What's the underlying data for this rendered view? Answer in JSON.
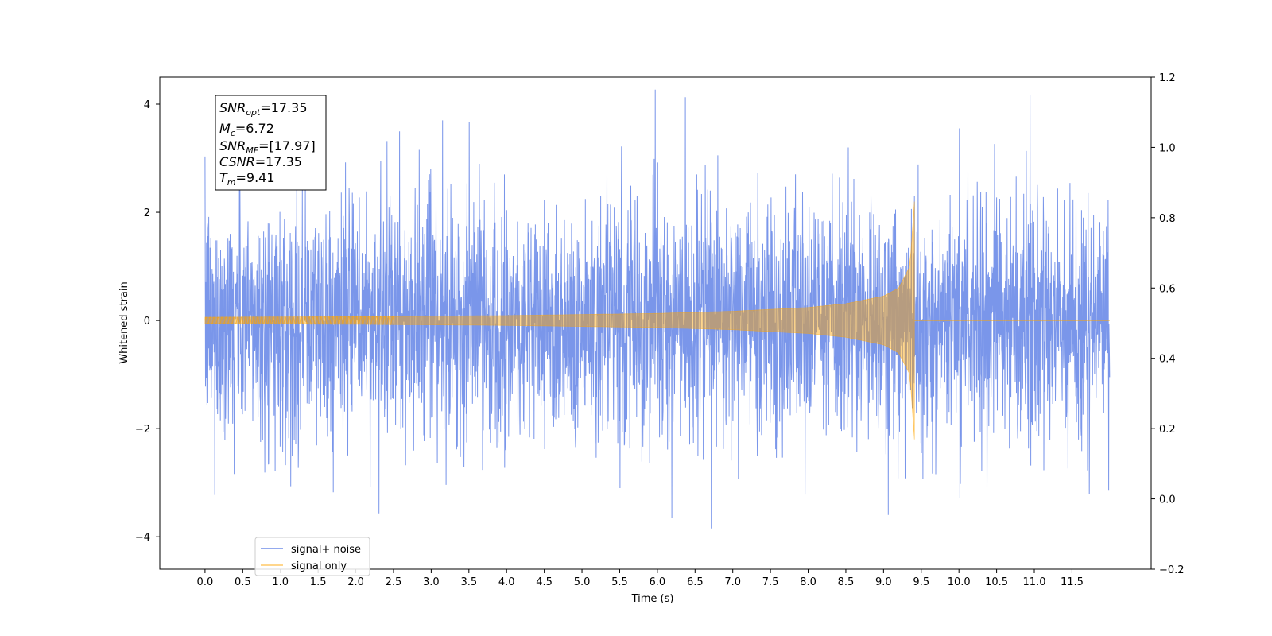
{
  "chart_data": {
    "type": "line",
    "title": "",
    "xlabel": "Time (s)",
    "ylabel": "Whitened strain",
    "xlim": [
      -0.6,
      12.55
    ],
    "ylim": [
      -4.6,
      4.5
    ],
    "y2lim": [
      -0.2,
      1.2
    ],
    "x_ticks": [
      0.0,
      0.5,
      1.0,
      1.5,
      2.0,
      2.5,
      3.0,
      3.5,
      4.0,
      4.5,
      5.0,
      5.5,
      6.0,
      6.5,
      7.0,
      7.5,
      8.0,
      8.5,
      9.0,
      9.5,
      10.0,
      10.5,
      11.0,
      11.5
    ],
    "x_tick_labels": [
      "0.0",
      "0.5",
      "1.0",
      "1.5",
      "2.0",
      "2.5",
      "3.0",
      "3.5",
      "4.0",
      "4.5",
      "5.0",
      "5.5",
      "6.0",
      "6.5",
      "7.0",
      "7.5",
      "8.0",
      "8.5",
      "9.0",
      "9.5",
      "10.0",
      "10.5",
      "11.0",
      "11.5"
    ],
    "y_ticks": [
      -4,
      -2,
      0,
      2,
      4
    ],
    "y_tick_labels": [
      "−4",
      "−2",
      "0",
      "2",
      "4"
    ],
    "y2_ticks": [
      -0.2,
      0.0,
      0.2,
      0.4,
      0.6,
      0.8,
      1.0,
      1.2
    ],
    "y2_tick_labels": [
      "−0.2",
      "0.0",
      "0.2",
      "0.4",
      "0.6",
      "0.8",
      "1.0",
      "1.2"
    ],
    "grid": false,
    "legend_position": "lower-left",
    "series": [
      {
        "name": "signal+ noise",
        "color": "#4169e1",
        "kind": "noise",
        "x_range": [
          0.0,
          12.0
        ],
        "typical_range": [
          -1.9,
          1.9
        ],
        "max_abs": 4.2
      },
      {
        "name": "signal only",
        "color": "#ffa500",
        "kind": "chirp",
        "x_range": [
          0.0,
          12.0
        ],
        "merger_time": 9.41,
        "envelope": [
          {
            "x": 0.0,
            "y": 0.06
          },
          {
            "x": 2.0,
            "y": 0.07
          },
          {
            "x": 4.0,
            "y": 0.09
          },
          {
            "x": 6.0,
            "y": 0.13
          },
          {
            "x": 7.0,
            "y": 0.17
          },
          {
            "x": 8.0,
            "y": 0.24
          },
          {
            "x": 8.5,
            "y": 0.31
          },
          {
            "x": 9.0,
            "y": 0.45
          },
          {
            "x": 9.2,
            "y": 0.6
          },
          {
            "x": 9.35,
            "y": 1.0
          },
          {
            "x": 9.41,
            "y": 2.2
          }
        ]
      }
    ],
    "annotation": {
      "lines": [
        {
          "base": "SNR",
          "sub": "opt",
          "value": "=17.35"
        },
        {
          "base": "M",
          "sub": "c",
          "value": "=6.72"
        },
        {
          "base": "SNR",
          "sub": "MF",
          "value": "=[17.97]"
        },
        {
          "base": "CSNR",
          "sub": "",
          "value": "=17.35"
        },
        {
          "base": "T",
          "sub": "m",
          "value": "=9.41"
        }
      ]
    }
  }
}
